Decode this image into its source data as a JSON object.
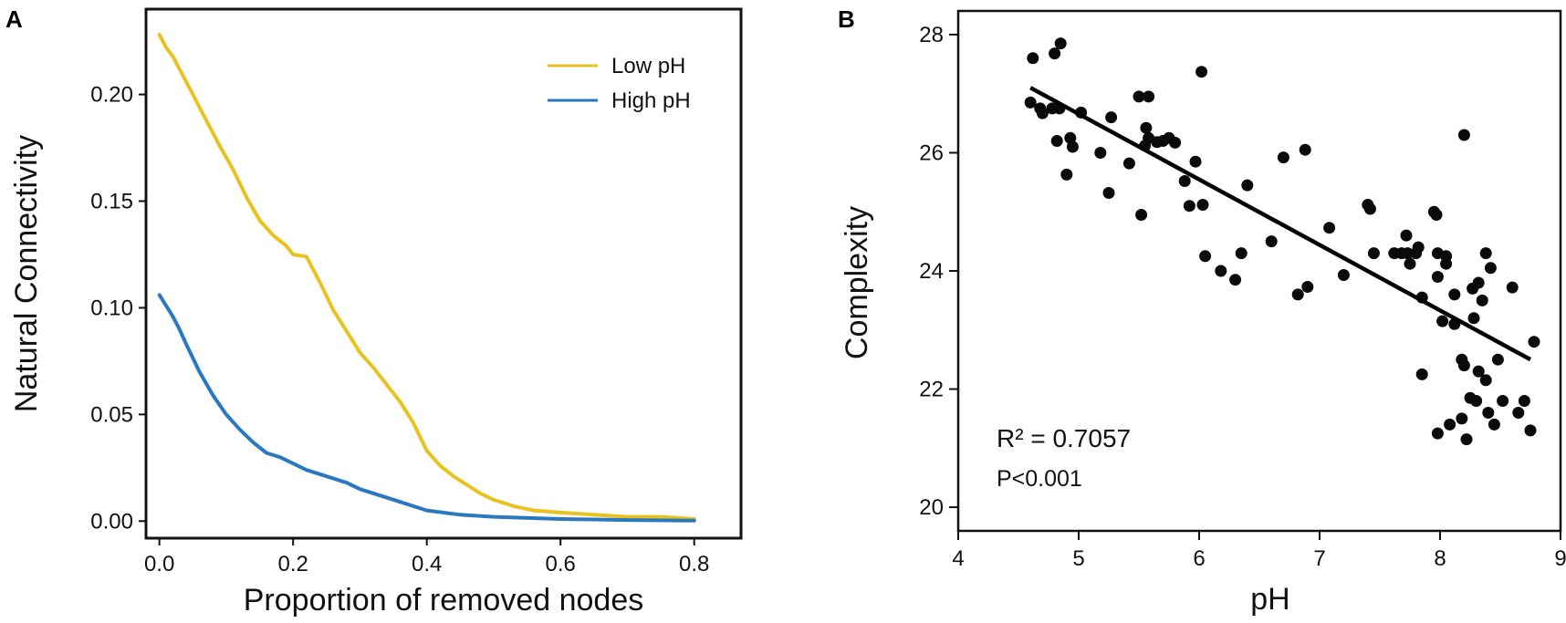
{
  "chart_data": [
    {
      "panel": "A",
      "type": "line",
      "xlabel": "Proportion of removed nodes",
      "ylabel": "Natural Connectivity",
      "xlim": [
        -0.02,
        0.87
      ],
      "ylim": [
        -0.008,
        0.24
      ],
      "xticks": [
        "0.0",
        "0.2",
        "0.4",
        "0.6",
        "0.8"
      ],
      "yticks": [
        "0.00",
        "0.05",
        "0.10",
        "0.15",
        "0.20"
      ],
      "legend_position": "top-right",
      "series": [
        {
          "name": "Low pH",
          "color": "#e8c21e",
          "x": [
            0.0,
            0.01,
            0.02,
            0.03,
            0.05,
            0.07,
            0.09,
            0.11,
            0.13,
            0.15,
            0.17,
            0.19,
            0.2,
            0.22,
            0.24,
            0.26,
            0.28,
            0.3,
            0.32,
            0.34,
            0.36,
            0.38,
            0.4,
            0.42,
            0.44,
            0.46,
            0.48,
            0.5,
            0.53,
            0.56,
            0.6,
            0.65,
            0.7,
            0.75,
            0.8
          ],
          "y": [
            0.228,
            0.222,
            0.218,
            0.212,
            0.2,
            0.188,
            0.176,
            0.165,
            0.152,
            0.141,
            0.134,
            0.129,
            0.125,
            0.124,
            0.112,
            0.099,
            0.089,
            0.079,
            0.072,
            0.064,
            0.056,
            0.046,
            0.033,
            0.026,
            0.021,
            0.017,
            0.013,
            0.01,
            0.007,
            0.005,
            0.004,
            0.003,
            0.002,
            0.002,
            0.001
          ]
        },
        {
          "name": "High pH",
          "color": "#2b78c2",
          "x": [
            0.0,
            0.01,
            0.02,
            0.03,
            0.04,
            0.06,
            0.08,
            0.1,
            0.12,
            0.14,
            0.16,
            0.18,
            0.2,
            0.22,
            0.25,
            0.28,
            0.3,
            0.33,
            0.36,
            0.4,
            0.45,
            0.5,
            0.6,
            0.7,
            0.8
          ],
          "y": [
            0.106,
            0.101,
            0.096,
            0.09,
            0.083,
            0.07,
            0.059,
            0.05,
            0.043,
            0.037,
            0.032,
            0.03,
            0.027,
            0.024,
            0.021,
            0.018,
            0.015,
            0.012,
            0.009,
            0.005,
            0.003,
            0.002,
            0.001,
            0.0005,
            0.0002
          ]
        }
      ]
    },
    {
      "panel": "B",
      "type": "scatter",
      "xlabel": "pH",
      "ylabel": "Complexity",
      "xlim": [
        4.0,
        9.0
      ],
      "ylim": [
        19.6,
        28.4
      ],
      "xticks": [
        "4",
        "5",
        "6",
        "7",
        "8",
        "9"
      ],
      "yticks": [
        "20",
        "22",
        "24",
        "26",
        "28"
      ],
      "annotation_r2": "R² = 0.7057",
      "annotation_p": "P<0.001",
      "regression": {
        "x": [
          4.6,
          8.75
        ],
        "y": [
          27.1,
          22.5
        ]
      },
      "points": [
        [
          4.6,
          26.85
        ],
        [
          4.62,
          27.6
        ],
        [
          4.68,
          26.75
        ],
        [
          4.7,
          26.67
        ],
        [
          4.78,
          26.75
        ],
        [
          4.8,
          27.68
        ],
        [
          4.82,
          26.2
        ],
        [
          4.85,
          27.85
        ],
        [
          4.84,
          26.75
        ],
        [
          4.9,
          25.63
        ],
        [
          4.93,
          26.25
        ],
        [
          4.95,
          26.1
        ],
        [
          5.02,
          26.68
        ],
        [
          5.18,
          26.0
        ],
        [
          5.25,
          25.32
        ],
        [
          5.27,
          26.6
        ],
        [
          5.42,
          25.82
        ],
        [
          5.5,
          26.95
        ],
        [
          5.52,
          24.95
        ],
        [
          5.55,
          26.12
        ],
        [
          5.58,
          26.95
        ],
        [
          5.56,
          26.42
        ],
        [
          5.58,
          26.25
        ],
        [
          5.65,
          26.18
        ],
        [
          5.7,
          26.2
        ],
        [
          5.75,
          26.25
        ],
        [
          5.8,
          26.17
        ],
        [
          5.88,
          25.52
        ],
        [
          5.92,
          25.1
        ],
        [
          5.97,
          25.85
        ],
        [
          6.02,
          27.37
        ],
        [
          6.03,
          25.12
        ],
        [
          6.05,
          24.25
        ],
        [
          6.18,
          24.0
        ],
        [
          6.3,
          23.85
        ],
        [
          6.35,
          24.3
        ],
        [
          6.4,
          25.45
        ],
        [
          6.6,
          24.5
        ],
        [
          6.7,
          25.92
        ],
        [
          6.82,
          23.6
        ],
        [
          6.88,
          26.05
        ],
        [
          6.9,
          23.73
        ],
        [
          7.08,
          24.73
        ],
        [
          7.2,
          23.93
        ],
        [
          7.4,
          25.12
        ],
        [
          7.42,
          25.05
        ],
        [
          7.45,
          24.3
        ],
        [
          7.62,
          24.3
        ],
        [
          7.68,
          24.3
        ],
        [
          7.72,
          24.6
        ],
        [
          7.73,
          24.3
        ],
        [
          7.75,
          24.12
        ],
        [
          7.8,
          24.3
        ],
        [
          7.82,
          24.4
        ],
        [
          7.85,
          23.55
        ],
        [
          7.85,
          22.25
        ],
        [
          7.95,
          25.0
        ],
        [
          7.97,
          24.95
        ],
        [
          7.98,
          23.9
        ],
        [
          7.98,
          24.3
        ],
        [
          7.98,
          21.25
        ],
        [
          8.02,
          23.15
        ],
        [
          8.05,
          24.12
        ],
        [
          8.05,
          24.25
        ],
        [
          8.08,
          21.4
        ],
        [
          8.12,
          23.1
        ],
        [
          8.12,
          23.6
        ],
        [
          8.18,
          21.5
        ],
        [
          8.18,
          22.5
        ],
        [
          8.2,
          22.4
        ],
        [
          8.2,
          26.3
        ],
        [
          8.22,
          21.15
        ],
        [
          8.25,
          21.85
        ],
        [
          8.27,
          23.7
        ],
        [
          8.28,
          23.2
        ],
        [
          8.3,
          21.8
        ],
        [
          8.32,
          22.3
        ],
        [
          8.32,
          23.8
        ],
        [
          8.35,
          23.5
        ],
        [
          8.38,
          24.3
        ],
        [
          8.38,
          22.15
        ],
        [
          8.4,
          21.6
        ],
        [
          8.42,
          24.05
        ],
        [
          8.45,
          21.4
        ],
        [
          8.48,
          22.5
        ],
        [
          8.52,
          21.8
        ],
        [
          8.6,
          23.72
        ],
        [
          8.65,
          21.6
        ],
        [
          8.7,
          21.8
        ],
        [
          8.75,
          21.3
        ],
        [
          8.78,
          22.8
        ]
      ]
    }
  ],
  "panel_labels": {
    "a": "A",
    "b": "B"
  },
  "colors": {
    "low_ph": "#e8c21e",
    "high_ph": "#2b78c2",
    "points": "#0a0a0a"
  }
}
